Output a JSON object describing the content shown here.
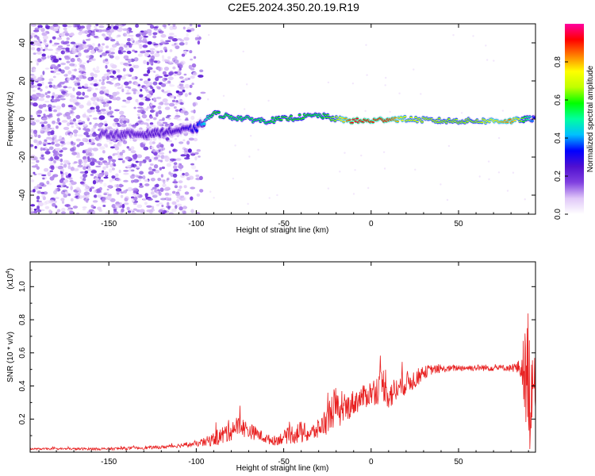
{
  "figure": {
    "title": "C2E5.2024.350.20.19.R19"
  },
  "chart_data": [
    {
      "type": "heatmap",
      "xlabel": "Height of straight line (km)",
      "ylabel": "Frequency (Hz)",
      "xlim": [
        -195,
        94
      ],
      "ylim": [
        -50,
        50
      ],
      "xticks": [
        -150,
        -100,
        -50,
        0,
        50
      ],
      "yticks": [
        -40,
        -20,
        0,
        20,
        40
      ],
      "colorbar": {
        "label": "Normalized spectral amplitude",
        "range": [
          0,
          1
        ],
        "ticks": [
          0.0,
          0.2,
          0.4,
          0.6,
          0.8
        ],
        "colormap": [
          "#ffffff",
          "#e0c8f8",
          "#8040e0",
          "#5010d0",
          "#0000ff",
          "#00c0ff",
          "#00ffa0",
          "#00ff00",
          "#c0ff00",
          "#ffff00",
          "#ff8000",
          "#ff0000",
          "#ff00a0"
        ]
      },
      "ridge": {
        "x": [
          -150,
          -130,
          -110,
          -100,
          -95,
          -90,
          -80,
          -70,
          -60,
          -50,
          -40,
          -30,
          -20,
          -10,
          0,
          10,
          20,
          40,
          60,
          80,
          90,
          94
        ],
        "frequency": [
          -8,
          -8,
          -6,
          -5,
          -1,
          3,
          1,
          0,
          -1,
          0,
          1,
          2,
          0,
          -1,
          -1,
          0,
          0,
          -1,
          -1,
          -1,
          0,
          0
        ],
        "amplitude": [
          0.2,
          0.22,
          0.25,
          0.3,
          0.45,
          0.6,
          0.55,
          0.55,
          0.55,
          0.6,
          0.6,
          0.55,
          0.65,
          0.95,
          0.9,
          0.9,
          0.7,
          0.65,
          0.65,
          0.85,
          0.5,
          0.3
        ]
      }
    },
    {
      "type": "line",
      "xlabel": "Height of straight line (km)",
      "ylabel": "SNR (10 * v/v)",
      "y_multiplier": "(x10",
      "y_multiplier_exp": "4",
      "xlim": [
        -195,
        94
      ],
      "ylim": [
        0,
        1.15
      ],
      "xticks": [
        -150,
        -100,
        -50,
        0,
        50
      ],
      "yticks": [
        0.2,
        0.4,
        0.6,
        0.8,
        1.0
      ],
      "color": "#e82020",
      "envelope": {
        "x": [
          -195,
          -150,
          -120,
          -100,
          -95,
          -90,
          -85,
          -80,
          -75,
          -70,
          -65,
          -60,
          -55,
          -50,
          -45,
          -40,
          -35,
          -30,
          -25,
          -22,
          -20,
          -18,
          -15,
          -10,
          -5,
          0,
          5,
          8,
          10,
          15,
          20,
          25,
          30,
          35,
          40,
          50,
          60,
          70,
          80,
          85,
          88,
          89,
          90,
          91,
          92,
          93,
          94
        ],
        "y": [
          0.02,
          0.02,
          0.03,
          0.05,
          0.06,
          0.08,
          0.1,
          0.14,
          0.16,
          0.13,
          0.11,
          0.08,
          0.07,
          0.09,
          0.11,
          0.12,
          0.11,
          0.14,
          0.2,
          0.26,
          0.28,
          0.22,
          0.26,
          0.3,
          0.33,
          0.36,
          0.39,
          0.42,
          0.34,
          0.38,
          0.42,
          0.44,
          0.48,
          0.5,
          0.5,
          0.51,
          0.51,
          0.51,
          0.51,
          0.51,
          0.5,
          0.35,
          0.55,
          0.25,
          0.5,
          0.4,
          0.4
        ],
        "noise": [
          0.005,
          0.008,
          0.01,
          0.015,
          0.03,
          0.04,
          0.06,
          0.07,
          0.06,
          0.05,
          0.04,
          0.03,
          0.03,
          0.04,
          0.06,
          0.07,
          0.05,
          0.06,
          0.09,
          0.12,
          0.12,
          0.07,
          0.08,
          0.08,
          0.07,
          0.08,
          0.1,
          0.12,
          0.09,
          0.08,
          0.07,
          0.06,
          0.04,
          0.03,
          0.02,
          0.02,
          0.02,
          0.02,
          0.02,
          0.05,
          0.25,
          0.4,
          0.45,
          0.3,
          0.3,
          0.2,
          0.15
        ]
      }
    }
  ]
}
